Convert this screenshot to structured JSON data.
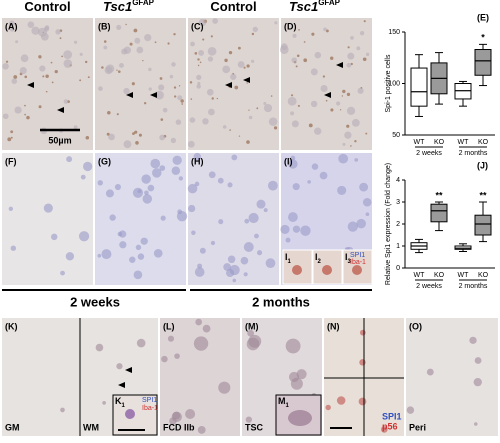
{
  "figure": {
    "headers": [
      {
        "text": "Control"
      },
      {
        "text": "Tsc1",
        "sup": "GFAP"
      },
      {
        "text": "Control"
      },
      {
        "text": "Tsc1",
        "sup": "GFAP"
      }
    ],
    "top_panels": [
      "(A)",
      "(B)",
      "(C)",
      "(D)"
    ],
    "mid_panels": [
      "(F)",
      "(G)",
      "(H)",
      "(I)"
    ],
    "scale_bar": "50µm",
    "periods": [
      "2 weeks",
      "2 months"
    ],
    "inset_i": {
      "letter": "I",
      "subs": [
        "1",
        "2",
        "3"
      ],
      "stain1": "SPI1",
      "stain2": "Iba-1"
    },
    "bottom_panels": [
      {
        "letter": "(K)",
        "labels": [
          "GM",
          "WM"
        ]
      },
      {
        "letter": "(L)",
        "labels": [
          "FCD IIb"
        ]
      },
      {
        "letter": "(M)",
        "labels": [
          "TSC"
        ]
      },
      {
        "letter": "(N)",
        "labels": []
      },
      {
        "letter": "(O)",
        "labels": [
          "Peri"
        ]
      }
    ],
    "inset_k": {
      "letter": "K",
      "sub": "1",
      "stain1": "SPI1",
      "stain2": "Iba-1"
    },
    "inset_m": {
      "letter": "M",
      "sub": "1"
    },
    "stain_n": {
      "stain1": "SPI1",
      "stain2": "p56"
    }
  },
  "chart_data": [
    {
      "type": "box",
      "title": "(E)",
      "ylabel": "Spi-1 positive cells",
      "categories": [
        "WT",
        "KO",
        "WT",
        "KO"
      ],
      "groups": [
        "2 weeks",
        "2 months"
      ],
      "ylim": [
        50,
        150
      ],
      "yticks": [
        50,
        100,
        150
      ],
      "boxes": [
        {
          "min": 68,
          "q1": 78,
          "median": 92,
          "q3": 115,
          "max": 128,
          "color": "#ffffff"
        },
        {
          "min": 80,
          "q1": 90,
          "median": 105,
          "q3": 120,
          "max": 130,
          "color": "#9a9a9a"
        },
        {
          "min": 78,
          "q1": 85,
          "median": 93,
          "q3": 100,
          "max": 102,
          "color": "#ffffff"
        },
        {
          "min": 98,
          "q1": 108,
          "median": 122,
          "q3": 133,
          "max": 138,
          "color": "#9a9a9a"
        }
      ],
      "annotations": [
        {
          "index": 3,
          "text": "*"
        }
      ]
    },
    {
      "type": "box",
      "title": "(J)",
      "ylabel": "Relative Spi1 expression (Fold change)",
      "categories": [
        "WT",
        "KO",
        "WT",
        "KO"
      ],
      "groups": [
        "2 weeks",
        "2 months"
      ],
      "ylim": [
        0,
        4
      ],
      "yticks": [
        0,
        1,
        2,
        3,
        4
      ],
      "boxes": [
        {
          "min": 0.7,
          "q1": 0.85,
          "median": 1,
          "q3": 1.15,
          "max": 1.3,
          "color": "#ffffff"
        },
        {
          "min": 1.7,
          "q1": 2.1,
          "median": 2.6,
          "q3": 2.9,
          "max": 3,
          "color": "#9a9a9a"
        },
        {
          "min": 0.75,
          "q1": 0.85,
          "median": 0.9,
          "q3": 1,
          "max": 1.1,
          "color": "#ffffff"
        },
        {
          "min": 1.2,
          "q1": 1.5,
          "median": 2,
          "q3": 2.4,
          "max": 3,
          "color": "#9a9a9a"
        }
      ],
      "annotations": [
        {
          "index": 1,
          "text": "**"
        },
        {
          "index": 3,
          "text": "**"
        }
      ]
    }
  ]
}
